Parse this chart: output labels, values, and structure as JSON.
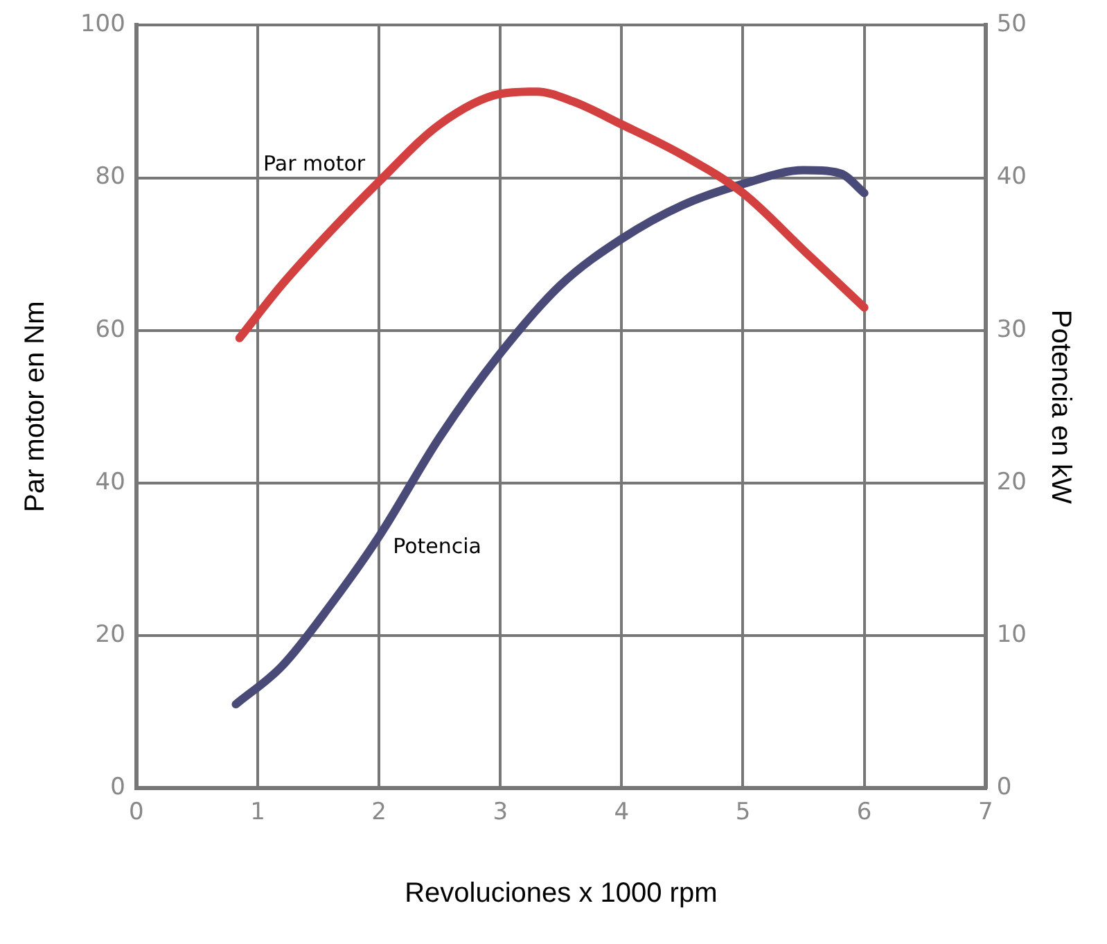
{
  "chart_data": {
    "type": "line",
    "xlabel": "Revoluciones x 1000 rpm",
    "ylabel": "Par motor en Nm",
    "y2label": "Potencia en kW",
    "xlim": [
      0,
      7
    ],
    "xticks": [
      0,
      1,
      2,
      3,
      4,
      5,
      6,
      7
    ],
    "ylim": [
      0,
      100
    ],
    "yticks": [
      0,
      20,
      40,
      60,
      80,
      100
    ],
    "y2lim": [
      0,
      50
    ],
    "y2ticks": [
      0,
      10,
      20,
      30,
      40,
      50
    ],
    "grid": true,
    "marker": "none",
    "line_style": "solid",
    "series": [
      {
        "name": "Par motor",
        "color": "#d2403f",
        "x": [
          0.85,
          1.2,
          1.6,
          2,
          2.5,
          3,
          3.3,
          3.6,
          4,
          4.5,
          5,
          5.5,
          6
        ],
        "values": [
          59,
          66,
          73,
          79.5,
          87,
          91,
          91.3,
          90,
          87,
          83,
          78,
          70.5,
          63
        ]
      },
      {
        "name": "Potencia",
        "color": "#4a4a78",
        "axis": "y2",
        "x": [
          0.82,
          1.2,
          1.6,
          2,
          2.5,
          3,
          3.5,
          4,
          4.5,
          5,
          5.5,
          5.8,
          6
        ],
        "values": [
          5.5,
          8,
          12,
          16.5,
          23,
          28.5,
          33,
          36,
          38.2,
          39.6,
          40.5,
          40.3,
          39
        ]
      }
    ]
  }
}
